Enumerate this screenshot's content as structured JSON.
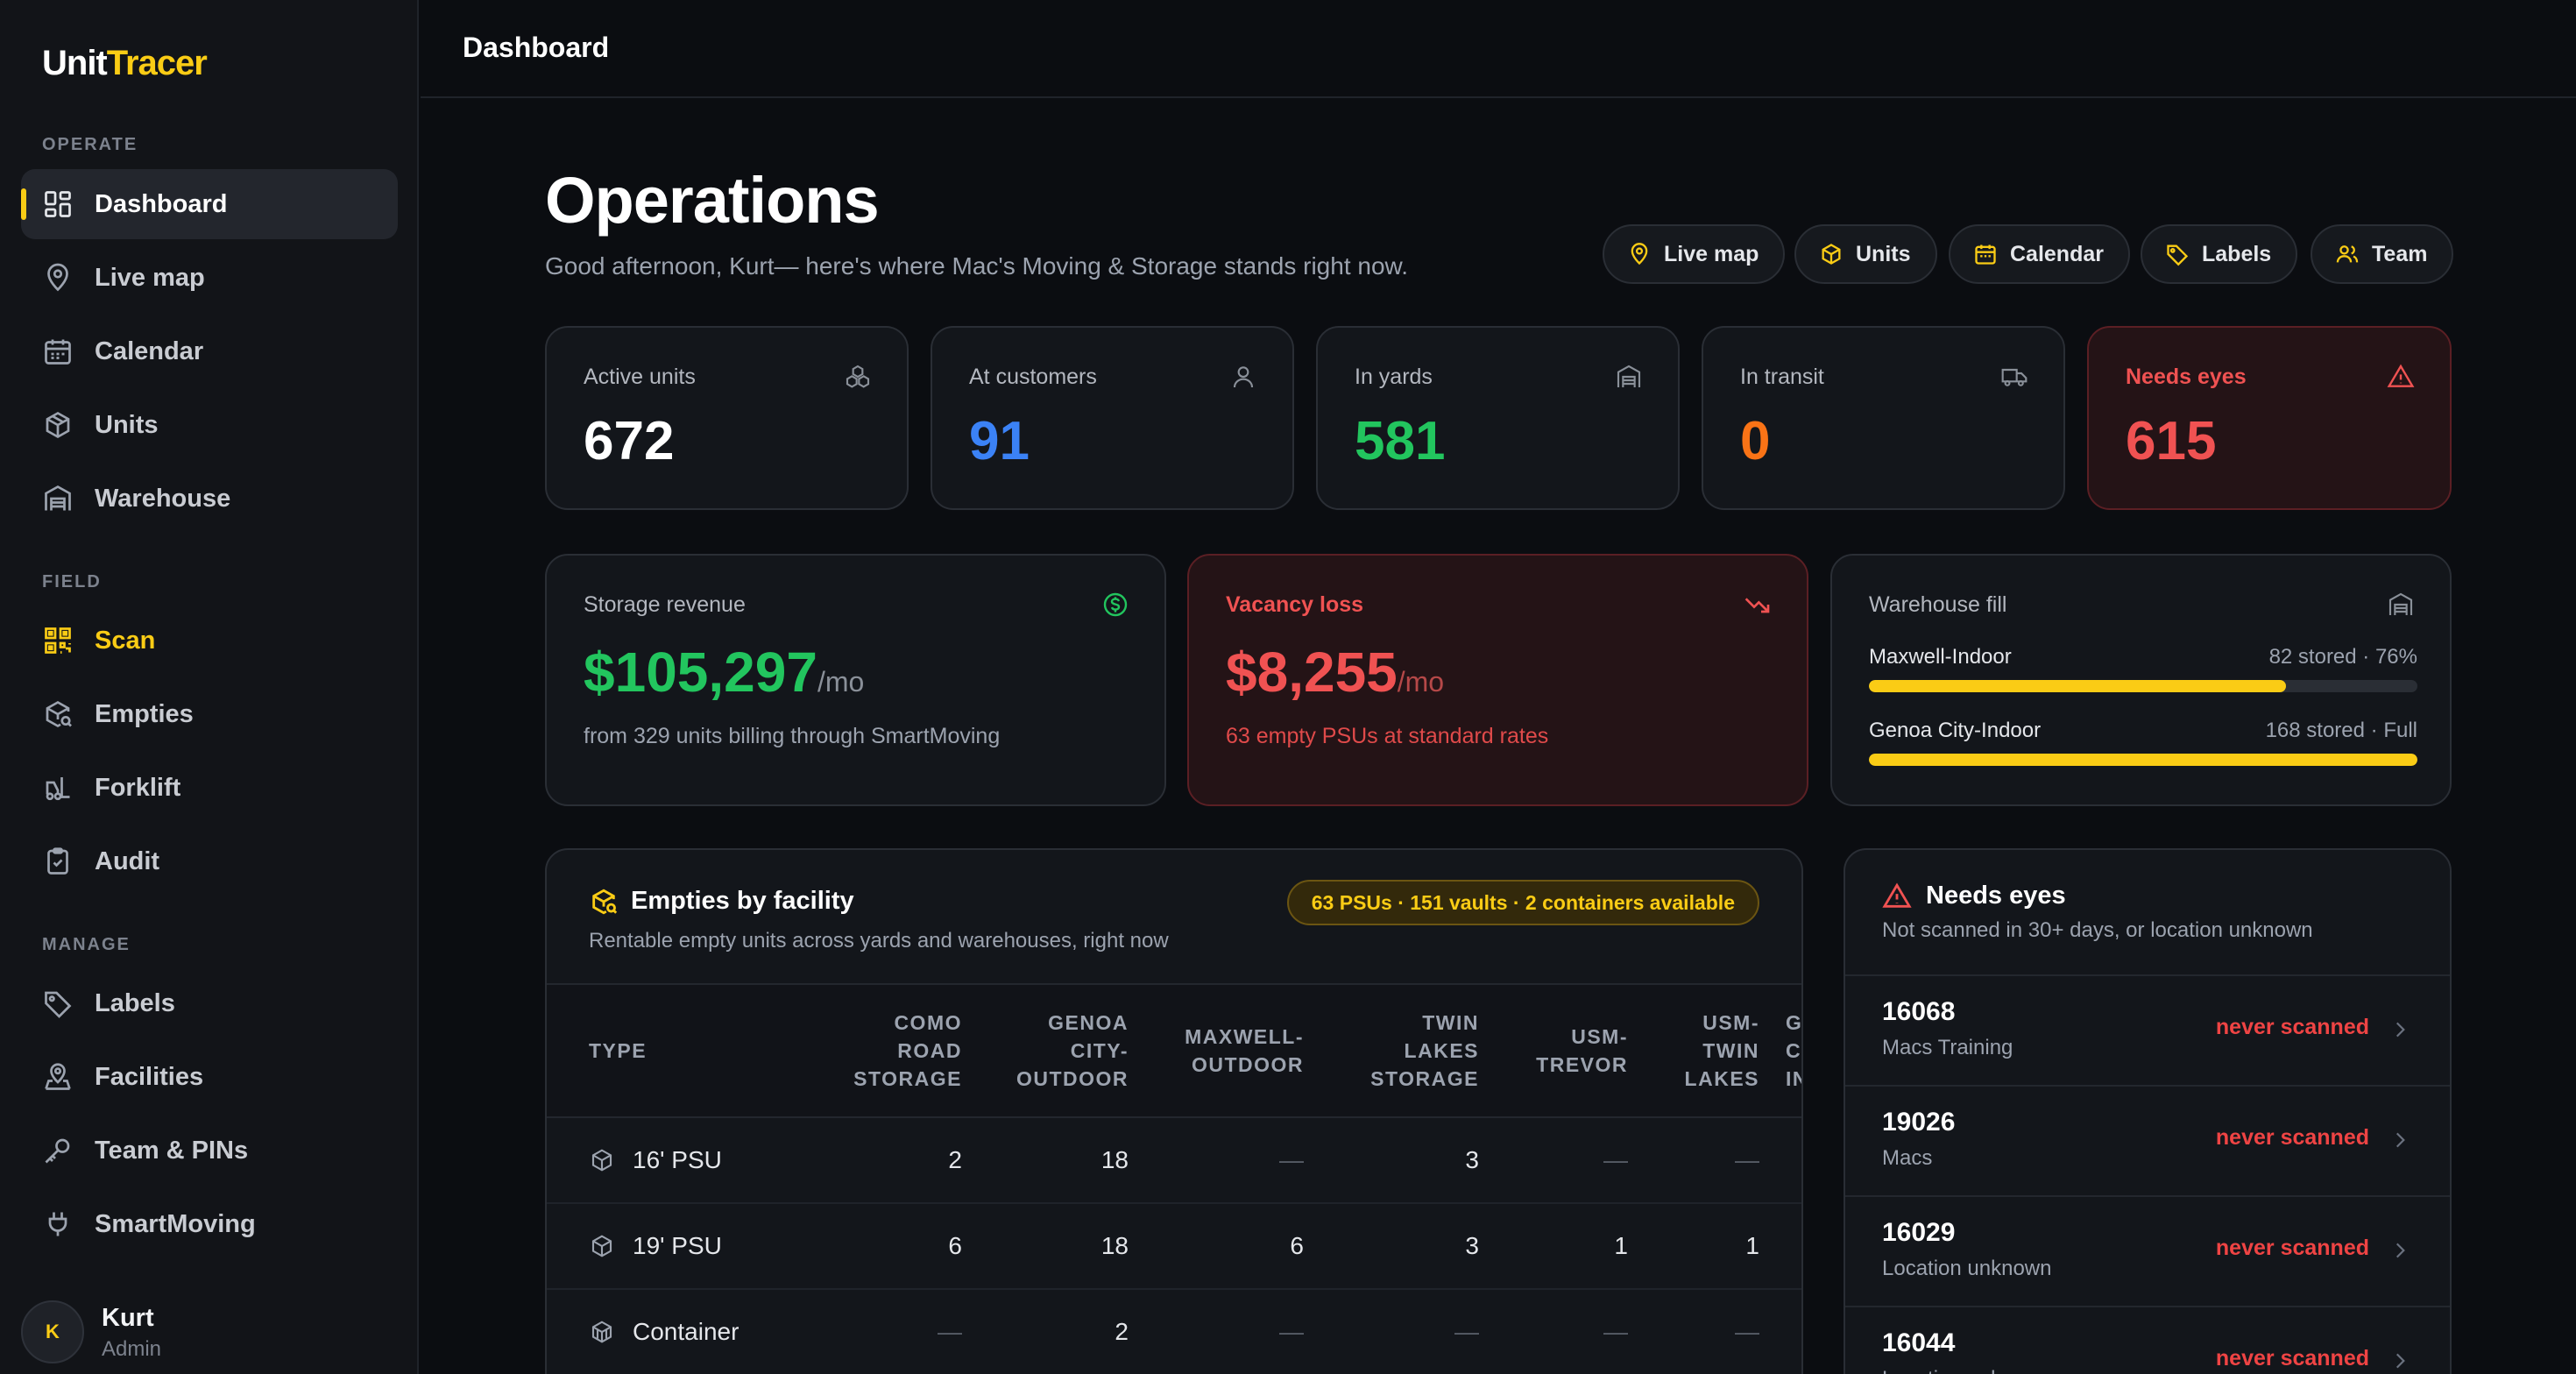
{
  "brand": {
    "part1": "Unit",
    "part2": "Tracer"
  },
  "sidebar": {
    "sections": [
      {
        "label": "OPERATE",
        "items": [
          {
            "label": "Dashboard",
            "icon": "dashboard-icon",
            "active": true
          },
          {
            "label": "Live map",
            "icon": "map-pin-icon"
          },
          {
            "label": "Calendar",
            "icon": "calendar-icon"
          },
          {
            "label": "Units",
            "icon": "box-icon"
          },
          {
            "label": "Warehouse",
            "icon": "warehouse-icon"
          }
        ]
      },
      {
        "label": "FIELD",
        "items": [
          {
            "label": "Scan",
            "icon": "qr-scan-icon",
            "highlight": true
          },
          {
            "label": "Empties",
            "icon": "box-search-icon"
          },
          {
            "label": "Forklift",
            "icon": "forklift-icon"
          },
          {
            "label": "Audit",
            "icon": "clipboard-check-icon"
          }
        ]
      },
      {
        "label": "MANAGE",
        "items": [
          {
            "label": "Labels",
            "icon": "tag-icon"
          },
          {
            "label": "Facilities",
            "icon": "location-building-icon"
          },
          {
            "label": "Team & PINs",
            "icon": "key-icon"
          },
          {
            "label": "SmartMoving",
            "icon": "plug-icon"
          }
        ]
      }
    ],
    "user": {
      "initial": "K",
      "name": "Kurt",
      "role": "Admin"
    }
  },
  "header": {
    "title": "Dashboard"
  },
  "main": {
    "title": "Operations",
    "greeting": "Good afternoon, Kurt— here's where Mac's Moving & Storage stands right now.",
    "quick_links": [
      {
        "label": "Live map",
        "icon": "map-pin-icon"
      },
      {
        "label": "Units",
        "icon": "box-icon"
      },
      {
        "label": "Calendar",
        "icon": "calendar-icon"
      },
      {
        "label": "Labels",
        "icon": "tag-icon"
      },
      {
        "label": "Team",
        "icon": "users-icon"
      }
    ],
    "stats": [
      {
        "label": "Active units",
        "value": "672",
        "color": "#ffffff",
        "icon": "boxes-icon"
      },
      {
        "label": "At customers",
        "value": "91",
        "color": "#3b82f6",
        "icon": "user-icon"
      },
      {
        "label": "In yards",
        "value": "581",
        "color": "#22c55e",
        "icon": "warehouse-icon"
      },
      {
        "label": "In transit",
        "value": "0",
        "color": "#f97316",
        "icon": "truck-icon"
      },
      {
        "label": "Needs eyes",
        "value": "615",
        "color": "#f05252",
        "icon": "alert-triangle-icon",
        "alert": true
      }
    ],
    "storage_revenue": {
      "label": "Storage revenue",
      "value": "$105,297",
      "suffix": "/mo",
      "note": "from 329 units billing through SmartMoving",
      "color": "#22c55e"
    },
    "vacancy_loss": {
      "label": "Vacancy loss",
      "value": "$8,255",
      "suffix": "/mo",
      "note": "63 empty PSUs at standard rates",
      "color": "#f05252"
    },
    "warehouse_fill": {
      "label": "Warehouse fill",
      "rows": [
        {
          "name": "Maxwell-Indoor",
          "stat": "82 stored · 76%",
          "fill": 0.76
        },
        {
          "name": "Genoa City-Indoor",
          "stat": "168 stored · Full",
          "fill": 1.0
        }
      ]
    },
    "empties": {
      "title": "Empties by facility",
      "subtitle": "Rentable empty units across yards and warehouses, right now",
      "badge": "63 PSUs · 151 vaults · 2 containers available",
      "columns": [
        "TYPE",
        "COMO ROAD STORAGE",
        "GENOA CITY-OUTDOOR",
        "MAXWELL-OUTDOOR",
        "TWIN LAKES STORAGE",
        "USM-TREVOR",
        "USM-TWIN LAKES",
        "GENOA CITY-INDOOR"
      ],
      "rows": [
        {
          "type": "16' PSU",
          "cells": [
            "2",
            "18",
            "—",
            "3",
            "—",
            "—",
            ""
          ]
        },
        {
          "type": "19' PSU",
          "cells": [
            "6",
            "18",
            "6",
            "3",
            "1",
            "1",
            ""
          ]
        },
        {
          "type": "Container",
          "cells": [
            "—",
            "2",
            "—",
            "—",
            "—",
            "—",
            ""
          ]
        }
      ]
    },
    "needs_eyes": {
      "title": "Needs eyes",
      "subtitle": "Not scanned in 30+ days, or location unknown",
      "items": [
        {
          "id": "16068",
          "where": "Macs Training",
          "status": "never scanned"
        },
        {
          "id": "19026",
          "where": "Macs",
          "status": "never scanned"
        },
        {
          "id": "16029",
          "where": "Location unknown",
          "status": "never scanned"
        },
        {
          "id": "16044",
          "where": "Location unknown",
          "status": "never scanned"
        }
      ]
    }
  }
}
